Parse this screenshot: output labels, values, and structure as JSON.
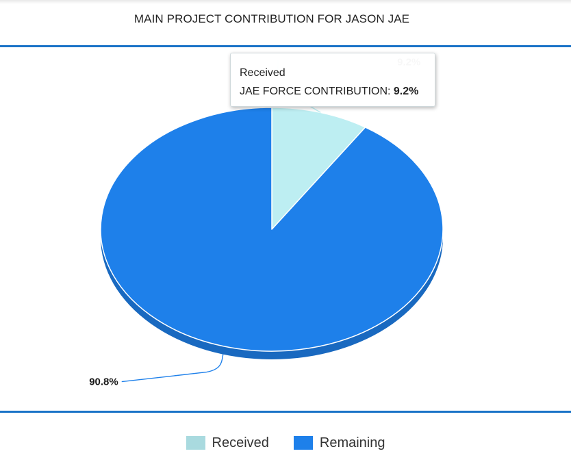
{
  "chart_data": {
    "type": "pie",
    "title": "MAIN PROJECT CONTRIBUTION FOR JASON JAE",
    "series_name": "JAE FORCE CONTRIBUTION",
    "slices": [
      {
        "name": "Received",
        "value": 9.2,
        "label": "9.2%",
        "color": "#bdeef2"
      },
      {
        "name": "Remaining",
        "value": 90.8,
        "label": "90.8%",
        "color": "#1e80ea"
      }
    ],
    "legend": [
      {
        "name": "Received",
        "color": "#a9dadf"
      },
      {
        "name": "Remaining",
        "color": "#1e80ea"
      }
    ],
    "legend_position": "bottom",
    "tooltip": {
      "point_name": "Received",
      "series_name": "JAE FORCE CONTRIBUTION:",
      "value": "9.2%"
    }
  }
}
